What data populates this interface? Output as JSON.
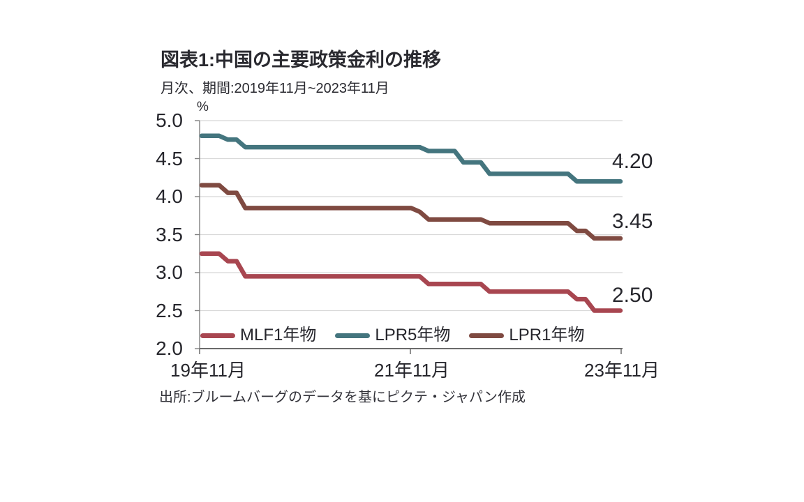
{
  "chart": {
    "title": "図表1:中国の主要政策金利の推移",
    "subtitle": "月次、期間:2019年11月~2023年11月",
    "unit": "%",
    "source": "出所:ブルームバーグのデータを基にピクテ・ジャパン作成"
  },
  "chart_data": {
    "type": "line",
    "title": "図表1:中国の主要政策金利の推移",
    "subtitle": "月次、期間:2019年11月~2023年11月",
    "ylabel": "%",
    "xlabel": "",
    "ylim": [
      2.0,
      5.0
    ],
    "grid": true,
    "legend_position": "bottom-inside",
    "x_unit": "monthly, 2019-11 to 2023-11 (49 points)",
    "y_ticks": [
      "5.0",
      "4.5",
      "4.0",
      "3.5",
      "3.0",
      "2.5",
      "2.0"
    ],
    "x_ticks": [
      "19年11月",
      "21年11月",
      "23年11月"
    ],
    "x_tick_month_index": [
      0,
      24,
      48
    ],
    "colors": {
      "mlf_1y": "#a84650",
      "lpr_5y": "#44757e",
      "lpr_1y": "#7f4a41",
      "grid": "#d8d8d8",
      "axis": "#6b6b6b",
      "text": "#26262c"
    },
    "series": [
      {
        "key": "mlf-1y",
        "name": "MLF1年物",
        "color": "#a84650",
        "end_label": "2.50",
        "values": [
          3.25,
          3.25,
          3.25,
          3.15,
          3.15,
          2.95,
          2.95,
          2.95,
          2.95,
          2.95,
          2.95,
          2.95,
          2.95,
          2.95,
          2.95,
          2.95,
          2.95,
          2.95,
          2.95,
          2.95,
          2.95,
          2.95,
          2.95,
          2.95,
          2.95,
          2.95,
          2.85,
          2.85,
          2.85,
          2.85,
          2.85,
          2.85,
          2.85,
          2.75,
          2.75,
          2.75,
          2.75,
          2.75,
          2.75,
          2.75,
          2.75,
          2.75,
          2.75,
          2.65,
          2.65,
          2.5,
          2.5,
          2.5,
          2.5
        ]
      },
      {
        "key": "lpr-5y",
        "name": "LPR5年物",
        "color": "#44757e",
        "end_label": "4.20",
        "values": [
          4.8,
          4.8,
          4.8,
          4.75,
          4.75,
          4.65,
          4.65,
          4.65,
          4.65,
          4.65,
          4.65,
          4.65,
          4.65,
          4.65,
          4.65,
          4.65,
          4.65,
          4.65,
          4.65,
          4.65,
          4.65,
          4.65,
          4.65,
          4.65,
          4.65,
          4.65,
          4.6,
          4.6,
          4.6,
          4.6,
          4.45,
          4.45,
          4.45,
          4.3,
          4.3,
          4.3,
          4.3,
          4.3,
          4.3,
          4.3,
          4.3,
          4.3,
          4.3,
          4.2,
          4.2,
          4.2,
          4.2,
          4.2,
          4.2
        ]
      },
      {
        "key": "lpr-1y",
        "name": "LPR1年物",
        "color": "#7f4a41",
        "end_label": "3.45",
        "values": [
          4.15,
          4.15,
          4.15,
          4.05,
          4.05,
          3.85,
          3.85,
          3.85,
          3.85,
          3.85,
          3.85,
          3.85,
          3.85,
          3.85,
          3.85,
          3.85,
          3.85,
          3.85,
          3.85,
          3.85,
          3.85,
          3.85,
          3.85,
          3.85,
          3.85,
          3.8,
          3.7,
          3.7,
          3.7,
          3.7,
          3.7,
          3.7,
          3.7,
          3.65,
          3.65,
          3.65,
          3.65,
          3.65,
          3.65,
          3.65,
          3.65,
          3.65,
          3.65,
          3.55,
          3.55,
          3.45,
          3.45,
          3.45,
          3.45
        ]
      }
    ],
    "source": "出所:ブルームバーグのデータを基にピクテ・ジャパン作成"
  }
}
